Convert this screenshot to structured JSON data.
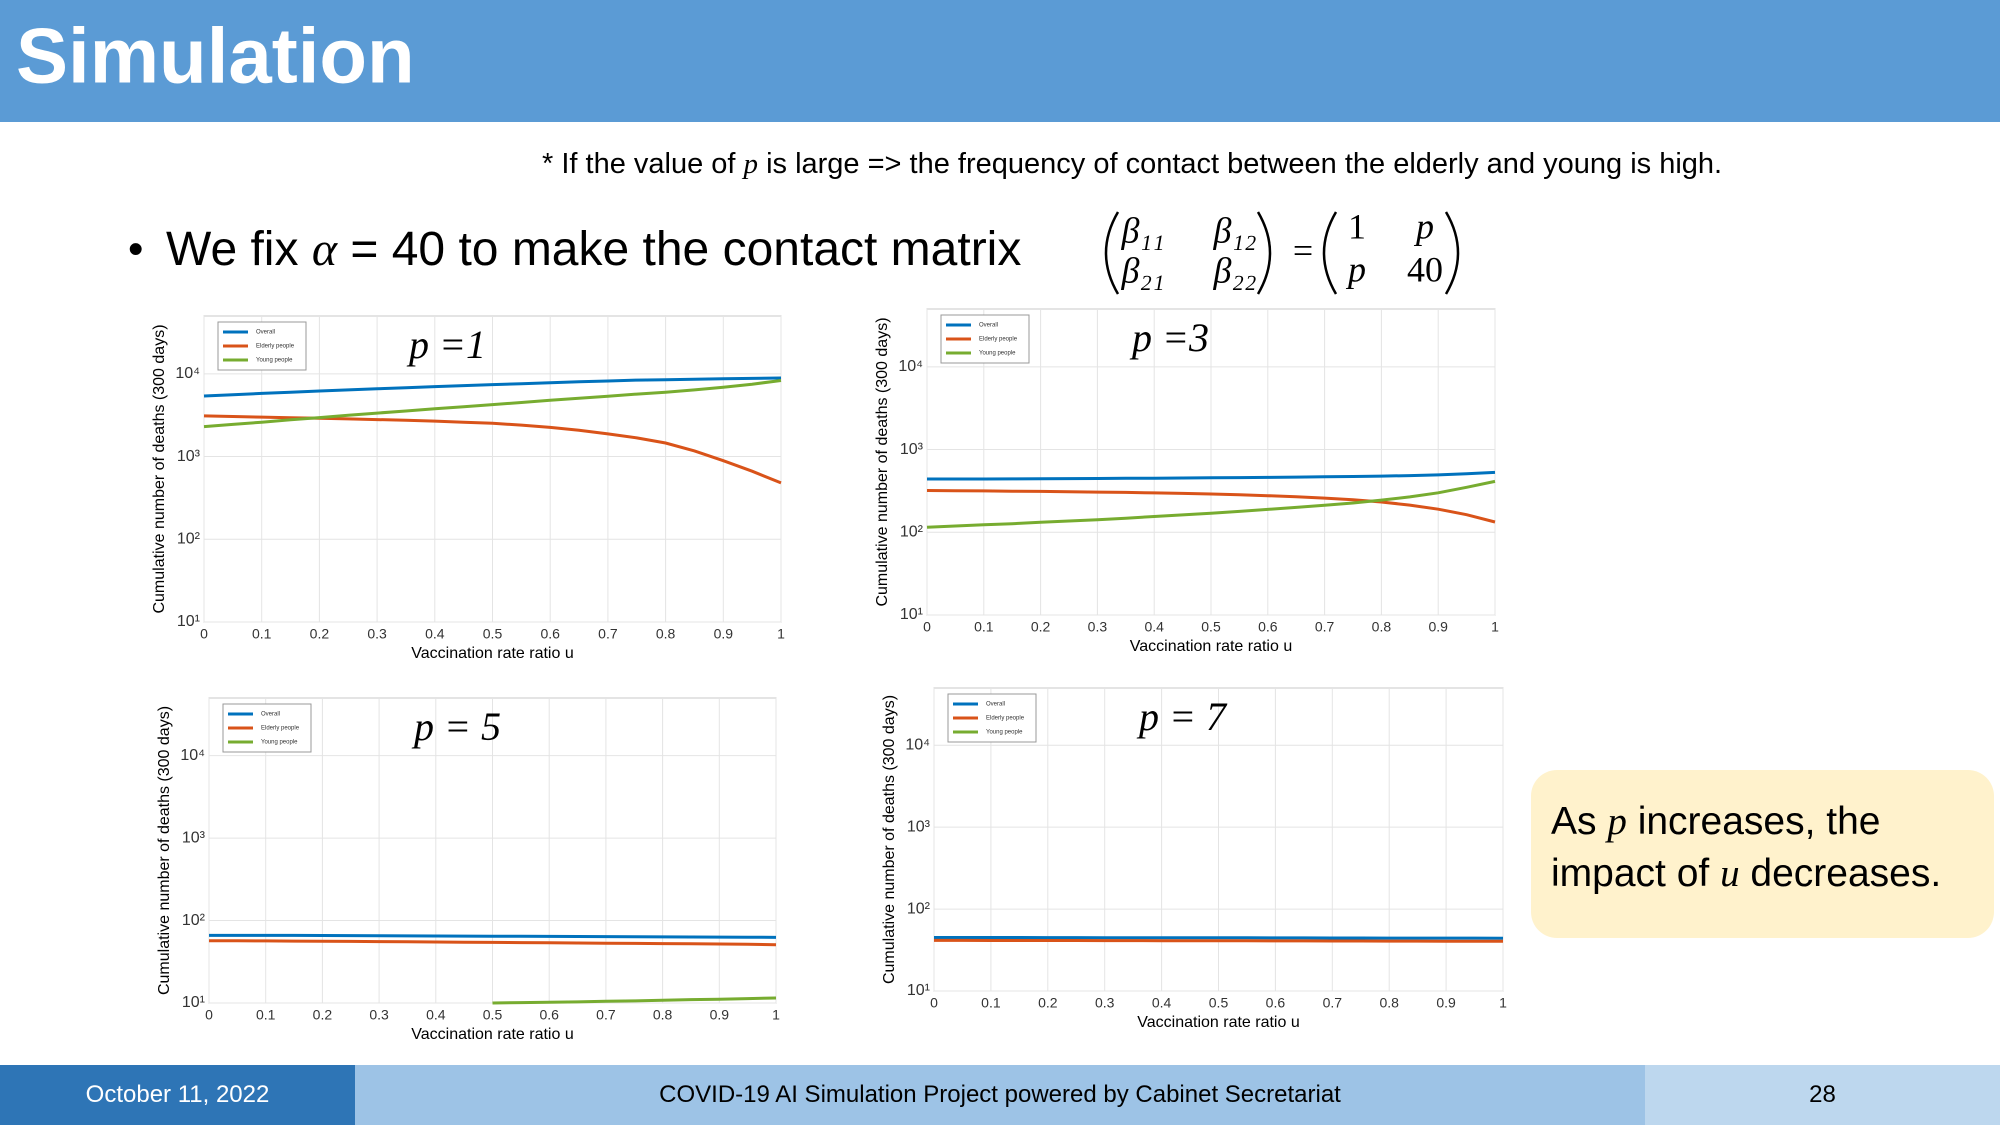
{
  "header": {
    "title": "Simulation"
  },
  "note": {
    "parts": [
      "* If the value of ",
      "p",
      " is large => the frequency of contact between the elderly and young is high."
    ]
  },
  "bullet": {
    "parts": [
      "We fix ",
      "α",
      " = 40 to make the contact matrix"
    ]
  },
  "matrix": {
    "lhs": [
      "β₁₁",
      "β₁₂",
      "β₂₁",
      "β₂₂"
    ],
    "equals": "=",
    "rhs": [
      "1",
      "p",
      "p",
      "40"
    ]
  },
  "callout": {
    "parts": [
      "As ",
      "p",
      " increases, the impact of ",
      "u",
      " decreases."
    ]
  },
  "footer": {
    "date": "October 11, 2022",
    "project": "COVID-19 AI Simulation Project powered by Cabinet Secretariat",
    "page": "28"
  },
  "chart_data": [
    {
      "type": "line",
      "annotation": "p =1",
      "xlabel": "Vaccination rate ratio u",
      "ylabel": "Cumulative number of deaths (300 days)",
      "y_scale": "log",
      "grid": true,
      "legend": "upper left",
      "xlim": [
        0,
        1
      ],
      "xticks": [
        0,
        0.1,
        0.2,
        0.3,
        0.4,
        0.5,
        0.6,
        0.7,
        0.8,
        0.9,
        1
      ],
      "ylim": [
        10,
        50000
      ],
      "yticks": [
        {
          "value": 10,
          "label": "10¹"
        },
        {
          "value": 100,
          "label": "10²"
        },
        {
          "value": 1000,
          "label": "10³"
        },
        {
          "value": 10000,
          "label": "10⁴"
        }
      ],
      "x": [
        0,
        0.05,
        0.1,
        0.15,
        0.2,
        0.25,
        0.3,
        0.35,
        0.4,
        0.45,
        0.5,
        0.55,
        0.6,
        0.65,
        0.7,
        0.75,
        0.8,
        0.85,
        0.9,
        0.95,
        1
      ],
      "series": [
        {
          "name": "Overall",
          "color": "#0072bd",
          "values": [
            5400,
            5600,
            5800,
            6000,
            6200,
            6400,
            6600,
            6800,
            7000,
            7200,
            7400,
            7600,
            7800,
            8000,
            8200,
            8400,
            8500,
            8600,
            8700,
            8800,
            8900
          ]
        },
        {
          "name": "Elderly people",
          "color": "#d95319",
          "values": [
            3100,
            3050,
            3000,
            2950,
            2900,
            2850,
            2800,
            2750,
            2680,
            2600,
            2520,
            2400,
            2250,
            2080,
            1880,
            1680,
            1460,
            1170,
            890,
            665,
            480
          ]
        },
        {
          "name": "Young people",
          "color": "#77ac30",
          "values": [
            2300,
            2450,
            2600,
            2780,
            2960,
            3150,
            3350,
            3550,
            3780,
            4000,
            4250,
            4500,
            4780,
            5060,
            5360,
            5680,
            6000,
            6400,
            6900,
            7500,
            8300
          ]
        }
      ]
    },
    {
      "type": "line",
      "annotation": "p =3",
      "xlabel": "Vaccination rate ratio u",
      "ylabel": "Cumulative number of deaths (300 days)",
      "y_scale": "log",
      "grid": true,
      "legend": "upper left",
      "xlim": [
        0,
        1
      ],
      "xticks": [
        0,
        0.1,
        0.2,
        0.3,
        0.4,
        0.5,
        0.6,
        0.7,
        0.8,
        0.9,
        1
      ],
      "ylim": [
        10,
        50000
      ],
      "yticks": [
        {
          "value": 10,
          "label": "10¹"
        },
        {
          "value": 100,
          "label": "10²"
        },
        {
          "value": 1000,
          "label": "10³"
        },
        {
          "value": 10000,
          "label": "10⁴"
        }
      ],
      "x": [
        0,
        0.05,
        0.1,
        0.15,
        0.2,
        0.25,
        0.3,
        0.35,
        0.4,
        0.45,
        0.5,
        0.55,
        0.6,
        0.65,
        0.7,
        0.75,
        0.8,
        0.85,
        0.9,
        0.95,
        1
      ],
      "series": [
        {
          "name": "Overall",
          "color": "#0072bd",
          "values": [
            440,
            440,
            441,
            442,
            443,
            445,
            447,
            449,
            451,
            453,
            455,
            458,
            461,
            464,
            468,
            472,
            477,
            484,
            494,
            510,
            530
          ]
        },
        {
          "name": "Elderly people",
          "color": "#d95319",
          "values": [
            320,
            318,
            316,
            314,
            312,
            309,
            306,
            303,
            299,
            295,
            290,
            284,
            277,
            269,
            259,
            247,
            232,
            213,
            190,
            163,
            133
          ]
        },
        {
          "name": "Young people",
          "color": "#77ac30",
          "values": [
            115,
            119,
            123,
            127,
            132,
            137,
            142,
            148,
            155,
            162,
            170,
            179,
            189,
            200,
            212,
            226,
            245,
            268,
            300,
            350,
            412
          ]
        }
      ]
    },
    {
      "type": "line",
      "annotation": "p = 5",
      "xlabel": "Vaccination rate ratio u",
      "ylabel": "Cumulative number of deaths (300 days)",
      "y_scale": "log",
      "grid": true,
      "legend": "upper left",
      "xlim": [
        0,
        1
      ],
      "xticks": [
        0,
        0.1,
        0.2,
        0.3,
        0.4,
        0.5,
        0.6,
        0.7,
        0.8,
        0.9,
        1
      ],
      "ylim": [
        10,
        50000
      ],
      "yticks": [
        {
          "value": 10,
          "label": "10¹"
        },
        {
          "value": 100,
          "label": "10²"
        },
        {
          "value": 1000,
          "label": "10³"
        },
        {
          "value": 10000,
          "label": "10⁴"
        }
      ],
      "x": [
        0,
        0.05,
        0.1,
        0.15,
        0.2,
        0.25,
        0.3,
        0.35,
        0.4,
        0.45,
        0.5,
        0.55,
        0.6,
        0.65,
        0.7,
        0.75,
        0.8,
        0.85,
        0.9,
        0.95,
        1
      ],
      "series": [
        {
          "name": "Overall",
          "color": "#0072bd",
          "values": [
            66,
            66,
            66,
            66,
            65.8,
            65.6,
            65.4,
            65.2,
            65,
            64.8,
            64.6,
            64.4,
            64.2,
            64,
            63.8,
            63.6,
            63.4,
            63.2,
            63,
            62.8,
            62.5
          ]
        },
        {
          "name": "Elderly people",
          "color": "#d95319",
          "values": [
            57,
            56.8,
            56.6,
            56.4,
            56.1,
            55.8,
            55.5,
            55.2,
            54.9,
            54.6,
            54.3,
            54,
            53.7,
            53.4,
            53.1,
            52.8,
            52.5,
            52.2,
            51.9,
            51.5,
            51
          ]
        },
        {
          "name": "Young people",
          "color": "#77ac30",
          "values": [
            null,
            null,
            null,
            null,
            null,
            null,
            null,
            null,
            null,
            null,
            10,
            10.1,
            10.2,
            10.3,
            10.5,
            10.6,
            10.8,
            11,
            11.1,
            11.3,
            11.5
          ]
        }
      ]
    },
    {
      "type": "line",
      "annotation": "p = 7",
      "xlabel": "Vaccination rate ratio u",
      "ylabel": "Cumulative number of deaths (300 days)",
      "y_scale": "log",
      "grid": true,
      "legend": "upper left",
      "xlim": [
        0,
        1
      ],
      "xticks": [
        0,
        0.1,
        0.2,
        0.3,
        0.4,
        0.5,
        0.6,
        0.7,
        0.8,
        0.9,
        1
      ],
      "ylim": [
        10,
        50000
      ],
      "yticks": [
        {
          "value": 10,
          "label": "10¹"
        },
        {
          "value": 100,
          "label": "10²"
        },
        {
          "value": 1000,
          "label": "10³"
        },
        {
          "value": 10000,
          "label": "10⁴"
        }
      ],
      "x": [
        0,
        0.05,
        0.1,
        0.15,
        0.2,
        0.25,
        0.3,
        0.35,
        0.4,
        0.45,
        0.5,
        0.55,
        0.6,
        0.65,
        0.7,
        0.75,
        0.8,
        0.85,
        0.9,
        0.95,
        1
      ],
      "series": [
        {
          "name": "Overall",
          "color": "#0072bd",
          "values": [
            45,
            45,
            45,
            45,
            44.9,
            44.9,
            44.8,
            44.8,
            44.7,
            44.7,
            44.6,
            44.6,
            44.5,
            44.5,
            44.4,
            44.4,
            44.3,
            44.3,
            44.2,
            44.2,
            44.1
          ]
        },
        {
          "name": "Elderly people",
          "color": "#d95319",
          "values": [
            41.5,
            41.5,
            41.4,
            41.4,
            41.3,
            41.3,
            41.2,
            41.2,
            41.1,
            41.1,
            41,
            41,
            40.9,
            40.9,
            40.8,
            40.8,
            40.7,
            40.7,
            40.6,
            40.6,
            40.5
          ]
        },
        {
          "name": "Young people",
          "color": "#77ac30",
          "values": [
            null,
            null,
            null,
            null,
            null,
            null,
            null,
            null,
            null,
            null,
            null,
            null,
            null,
            null,
            null,
            null,
            null,
            null,
            null,
            null,
            null
          ]
        }
      ]
    }
  ]
}
